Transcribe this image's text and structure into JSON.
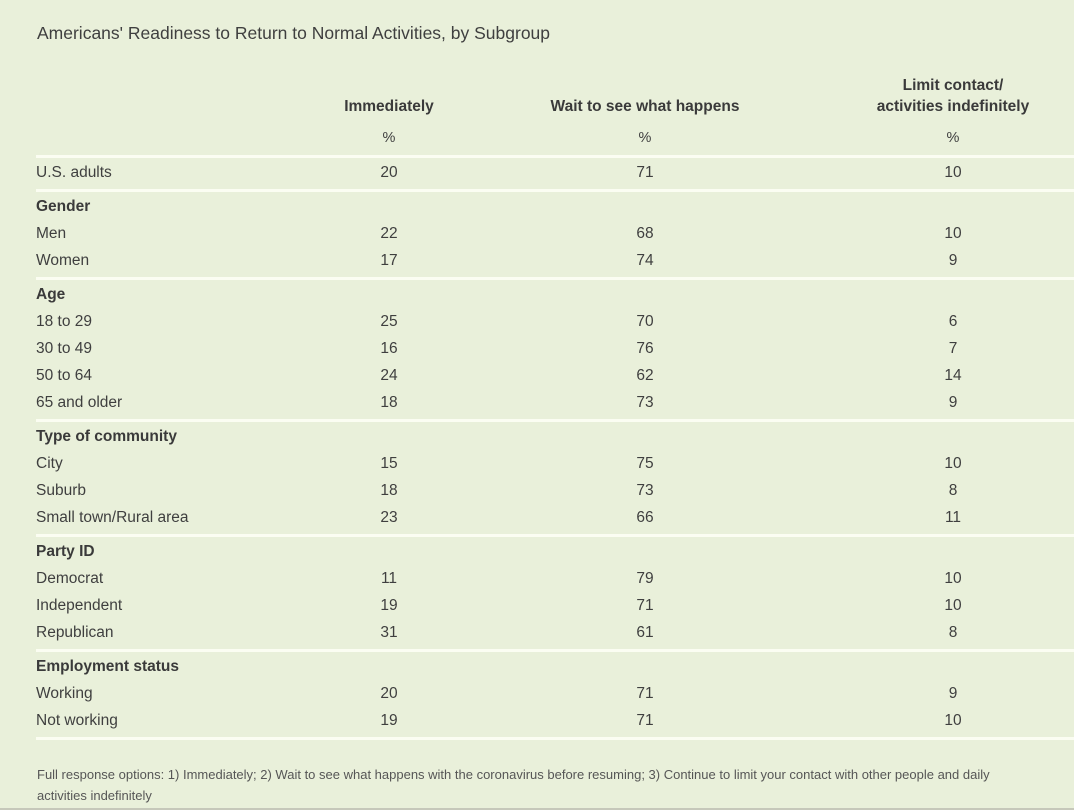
{
  "header": {
    "title": "Americans' Readiness to Return to Normal Activities, by Subgroup"
  },
  "footnote": "Full response options: 1) Immediately; 2) Wait to see what happens with the coronavirus before resuming; 3) Continue to limit your contact with other people and daily activities indefinitely",
  "colors": {
    "background": "#e9f0da",
    "separator_line": "#fbfdf2",
    "text": "#3f3f3f",
    "footnote_text": "#565656",
    "bottom_edge": "#c6c8ba"
  },
  "chart_data": {
    "type": "table",
    "title": "Americans' Readiness to Return to Normal Activities, by Subgroup",
    "columns": [
      "Immediately",
      "Wait to see what happens",
      "Limit contact/\nactivities indefinitely"
    ],
    "unit": "%",
    "sections": [
      {
        "group": "",
        "rows": [
          {
            "label": "U.S. adults",
            "values": [
              20,
              71,
              10
            ]
          }
        ]
      },
      {
        "group": "Gender",
        "rows": [
          {
            "label": "Men",
            "values": [
              22,
              68,
              10
            ]
          },
          {
            "label": "Women",
            "values": [
              17,
              74,
              9
            ]
          }
        ]
      },
      {
        "group": "Age",
        "rows": [
          {
            "label": "18 to 29",
            "values": [
              25,
              70,
              6
            ]
          },
          {
            "label": "30 to 49",
            "values": [
              16,
              76,
              7
            ]
          },
          {
            "label": "50 to 64",
            "values": [
              24,
              62,
              14
            ]
          },
          {
            "label": "65 and older",
            "values": [
              18,
              73,
              9
            ]
          }
        ]
      },
      {
        "group": "Type of community",
        "rows": [
          {
            "label": "City",
            "values": [
              15,
              75,
              10
            ]
          },
          {
            "label": "Suburb",
            "values": [
              18,
              73,
              8
            ]
          },
          {
            "label": "Small town/Rural area",
            "values": [
              23,
              66,
              11
            ]
          }
        ]
      },
      {
        "group": "Party ID",
        "rows": [
          {
            "label": "Democrat",
            "values": [
              11,
              79,
              10
            ]
          },
          {
            "label": "Independent",
            "values": [
              19,
              71,
              10
            ]
          },
          {
            "label": "Republican",
            "values": [
              31,
              61,
              8
            ]
          }
        ]
      },
      {
        "group": "Employment status",
        "rows": [
          {
            "label": "Working",
            "values": [
              20,
              71,
              9
            ]
          },
          {
            "label": "Not working",
            "values": [
              19,
              71,
              10
            ]
          }
        ]
      }
    ]
  }
}
